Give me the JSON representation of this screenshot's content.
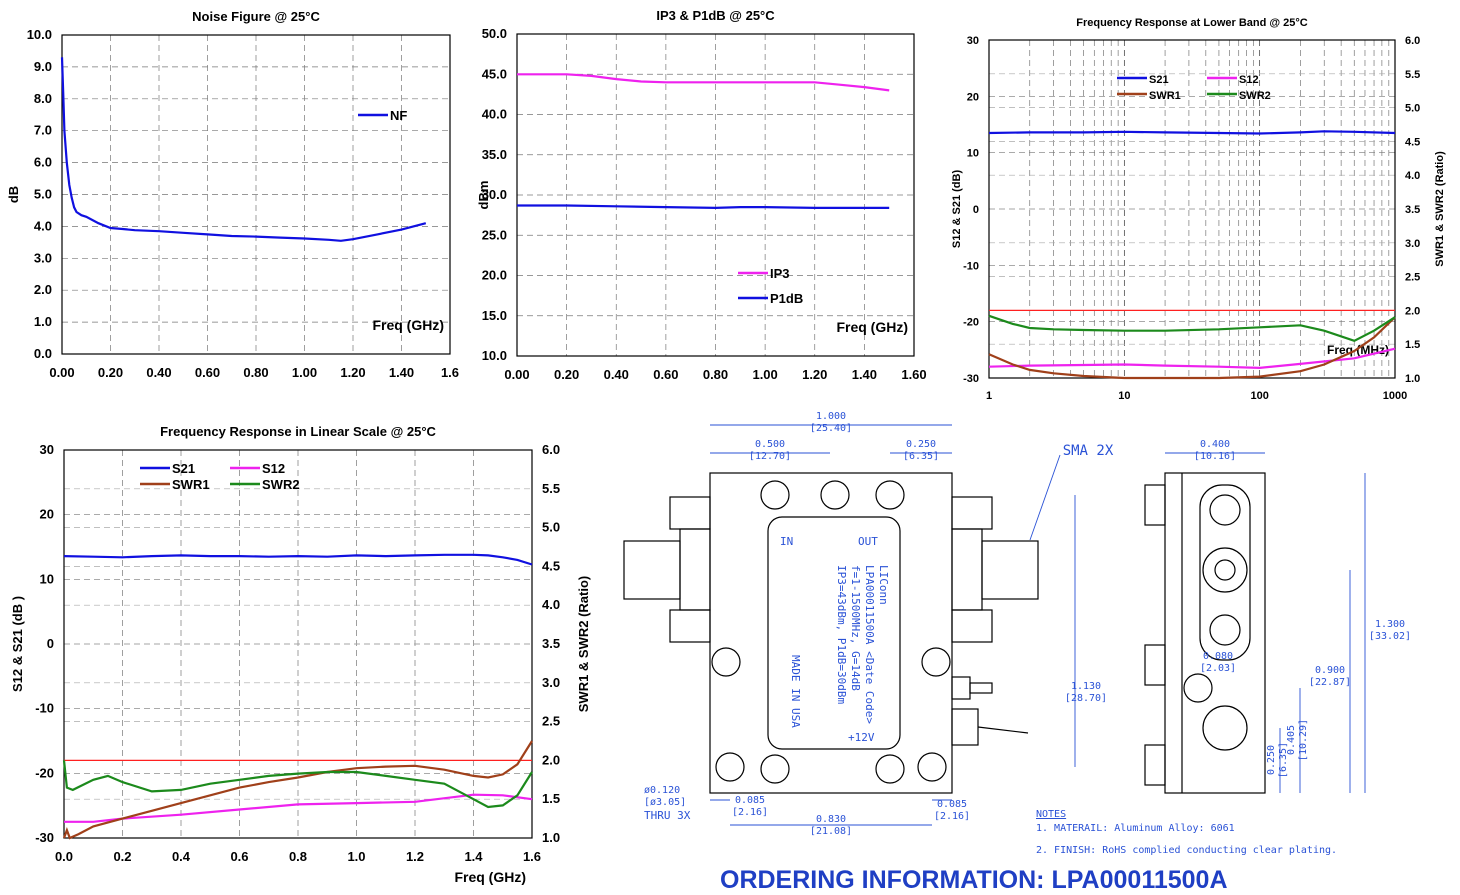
{
  "chart_data": [
    {
      "type": "line",
      "title": "Noise Figure @ 25°C",
      "xlabel": "Freq (GHz)",
      "ylabel": "dB",
      "xlim": [
        0,
        1.6
      ],
      "ylim": [
        0,
        10
      ],
      "x_ticks": [
        "0.00",
        "0.20",
        "0.40",
        "0.60",
        "0.80",
        "1.00",
        "1.20",
        "1.40",
        "1.6"
      ],
      "y_ticks": [
        "0.0",
        "1.0",
        "2.0",
        "3.0",
        "4.0",
        "5.0",
        "6.0",
        "7.0",
        "8.0",
        "9.0",
        "10.0"
      ],
      "grid": true,
      "legend": "upper-right",
      "series": [
        {
          "name": "NF",
          "color": "#1010e0",
          "x": [
            0.0,
            0.005,
            0.01,
            0.02,
            0.03,
            0.04,
            0.05,
            0.06,
            0.08,
            0.1,
            0.15,
            0.2,
            0.25,
            0.3,
            0.4,
            0.5,
            0.6,
            0.7,
            0.8,
            0.9,
            1.0,
            1.1,
            1.15,
            1.2,
            1.3,
            1.4,
            1.5
          ],
          "y": [
            9.3,
            8.2,
            7.0,
            6.0,
            5.3,
            4.9,
            4.6,
            4.45,
            4.35,
            4.3,
            4.1,
            3.95,
            3.92,
            3.88,
            3.85,
            3.8,
            3.75,
            3.7,
            3.68,
            3.65,
            3.62,
            3.58,
            3.55,
            3.6,
            3.75,
            3.9,
            4.1
          ]
        }
      ]
    },
    {
      "type": "line",
      "title": "IP3 & P1dB @ 25°C",
      "xlabel": "Freq (GHz)",
      "ylabel": "dBm",
      "xlim": [
        0,
        1.6
      ],
      "ylim": [
        10,
        50
      ],
      "x_ticks": [
        "0.00",
        "0.20",
        "0.40",
        "0.60",
        "0.80",
        "1.00",
        "1.20",
        "1.40",
        "1.60"
      ],
      "y_ticks": [
        "10.0",
        "15.0",
        "20.0",
        "25.0",
        "30.0",
        "35.0",
        "40.0",
        "45.0",
        "50.0"
      ],
      "grid": true,
      "legend": "lower-right",
      "series": [
        {
          "name": "IP3",
          "color": "#ee22ee",
          "x": [
            0.0,
            0.2,
            0.3,
            0.4,
            0.5,
            0.6,
            0.8,
            1.0,
            1.2,
            1.3,
            1.4,
            1.5
          ],
          "y": [
            45,
            45,
            44.8,
            44.4,
            44.1,
            44,
            44,
            44,
            44,
            43.7,
            43.4,
            43
          ]
        },
        {
          "name": "P1dB",
          "color": "#1010e0",
          "x": [
            0.0,
            0.2,
            0.4,
            0.6,
            0.8,
            0.9,
            1.0,
            1.2,
            1.4,
            1.5
          ],
          "y": [
            28.7,
            28.7,
            28.6,
            28.5,
            28.4,
            28.5,
            28.5,
            28.4,
            28.4,
            28.4
          ]
        }
      ]
    },
    {
      "type": "line",
      "title": "Frequency Response at Lower Band @ 25°C",
      "xlabel": "Freq (MHz)",
      "ylabel": "S12 & S21 (dB)",
      "y2label": "SWR1 & SWR2 (Ratio)",
      "xscale": "log",
      "xlim": [
        1,
        1000
      ],
      "ylim": [
        -30,
        30
      ],
      "y2lim": [
        1.0,
        6.0
      ],
      "x_ticks": [
        "1",
        "10",
        "100",
        "1000"
      ],
      "y_ticks": [
        "-30",
        "-20",
        "-10",
        "0",
        "10",
        "20",
        "30"
      ],
      "y2_ticks": [
        "1.0",
        "1.5",
        "2.0",
        "2.5",
        "3.0",
        "3.5",
        "4.0",
        "4.5",
        "5.0",
        "5.5",
        "6.0"
      ],
      "grid": true,
      "legend": "top",
      "reference_line": {
        "axis": "y2",
        "value": 2.0,
        "color": "#ff2020"
      },
      "series": [
        {
          "name": "S21",
          "axis": "y",
          "color": "#1010e0",
          "x": [
            1,
            2,
            5,
            10,
            20,
            50,
            100,
            200,
            300,
            500,
            1000
          ],
          "y": [
            13.5,
            13.6,
            13.6,
            13.7,
            13.6,
            13.5,
            13.4,
            13.6,
            13.8,
            13.7,
            13.5
          ]
        },
        {
          "name": "S12",
          "axis": "y",
          "color": "#ee22ee",
          "x": [
            1,
            2,
            5,
            10,
            20,
            50,
            100,
            200,
            500,
            1000
          ],
          "y": [
            -28,
            -27.8,
            -27.7,
            -27.6,
            -27.8,
            -28,
            -28.2,
            -27.5,
            -26.5,
            -24.8
          ]
        },
        {
          "name": "SWR1",
          "axis": "y2",
          "color": "#a0401a",
          "x": [
            1,
            1.5,
            2,
            3,
            5,
            10,
            20,
            50,
            100,
            200,
            300,
            500,
            700,
            1000
          ],
          "y": [
            1.35,
            1.2,
            1.12,
            1.07,
            1.03,
            1.0,
            1.0,
            1.0,
            1.02,
            1.1,
            1.2,
            1.4,
            1.6,
            1.9
          ]
        },
        {
          "name": "SWR2",
          "axis": "y2",
          "color": "#1c8a1c",
          "x": [
            1,
            1.5,
            2,
            3,
            5,
            10,
            20,
            50,
            100,
            200,
            300,
            500,
            700,
            1000
          ],
          "y": [
            1.92,
            1.8,
            1.74,
            1.72,
            1.71,
            1.7,
            1.7,
            1.72,
            1.75,
            1.78,
            1.7,
            1.55,
            1.7,
            1.9
          ]
        }
      ]
    },
    {
      "type": "line",
      "title": "Frequency Response in Linear Scale @ 25°C",
      "xlabel": "Freq (GHz)",
      "ylabel": "S12 & S21 (dB )",
      "y2label": "SWR1 & SWR2 (Ratio)",
      "xlim": [
        0,
        1.6
      ],
      "ylim": [
        -30,
        30
      ],
      "y2lim": [
        1.0,
        6.0
      ],
      "x_ticks": [
        "0.0",
        "0.2",
        "0.4",
        "0.6",
        "0.8",
        "1.0",
        "1.2",
        "1.4",
        "1.6"
      ],
      "y_ticks": [
        "-30",
        "-20",
        "-10",
        "0",
        "10",
        "20",
        "30"
      ],
      "y2_ticks": [
        "1.0",
        "1.5",
        "2.0",
        "2.5",
        "3.0",
        "3.5",
        "4.0",
        "4.5",
        "5.0",
        "5.5",
        "6.0"
      ],
      "grid": true,
      "legend": "top",
      "reference_line": {
        "axis": "y2",
        "value": 2.0,
        "color": "#ff2020"
      },
      "series": [
        {
          "name": "S21",
          "axis": "y",
          "color": "#1010e0",
          "x": [
            0.0,
            0.1,
            0.2,
            0.3,
            0.4,
            0.5,
            0.6,
            0.7,
            0.8,
            0.9,
            1.0,
            1.1,
            1.2,
            1.3,
            1.4,
            1.45,
            1.5,
            1.55,
            1.6
          ],
          "y": [
            13.6,
            13.5,
            13.4,
            13.6,
            13.7,
            13.6,
            13.6,
            13.5,
            13.6,
            13.5,
            13.7,
            13.6,
            13.7,
            13.8,
            13.8,
            13.7,
            13.4,
            13.0,
            12.3
          ]
        },
        {
          "name": "S12",
          "axis": "y",
          "color": "#ee22ee",
          "x": [
            0.0,
            0.1,
            0.2,
            0.4,
            0.6,
            0.8,
            1.0,
            1.2,
            1.4,
            1.5,
            1.6
          ],
          "y": [
            -27.5,
            -27.5,
            -27,
            -26.4,
            -25.6,
            -24.8,
            -24.6,
            -24.4,
            -23.3,
            -23.4,
            -24
          ]
        },
        {
          "name": "SWR1",
          "axis": "y2",
          "color": "#a0401a",
          "x": [
            0.0,
            0.01,
            0.02,
            0.05,
            0.1,
            0.2,
            0.3,
            0.4,
            0.5,
            0.6,
            0.7,
            0.8,
            0.9,
            1.0,
            1.1,
            1.2,
            1.3,
            1.4,
            1.45,
            1.5,
            1.55,
            1.6
          ],
          "y": [
            1.0,
            1.1,
            1.0,
            1.05,
            1.15,
            1.25,
            1.35,
            1.45,
            1.55,
            1.65,
            1.72,
            1.78,
            1.85,
            1.9,
            1.92,
            1.93,
            1.88,
            1.8,
            1.78,
            1.82,
            1.95,
            2.25
          ]
        },
        {
          "name": "SWR2",
          "axis": "y2",
          "color": "#1c8a1c",
          "x": [
            0.0,
            0.01,
            0.03,
            0.1,
            0.15,
            0.2,
            0.3,
            0.4,
            0.5,
            0.6,
            0.7,
            0.8,
            0.9,
            1.0,
            1.1,
            1.2,
            1.3,
            1.4,
            1.45,
            1.5,
            1.55,
            1.6
          ],
          "y": [
            2.0,
            1.65,
            1.62,
            1.75,
            1.8,
            1.72,
            1.6,
            1.62,
            1.7,
            1.75,
            1.8,
            1.83,
            1.85,
            1.85,
            1.8,
            1.75,
            1.7,
            1.5,
            1.4,
            1.42,
            1.55,
            1.85
          ]
        }
      ]
    }
  ],
  "drawing": {
    "top_view": {
      "dim_width": "1.000",
      "dim_width_mm": "[25.40]",
      "dim_half": "0.500",
      "dim_half_mm": "[12.70]",
      "dim_quarter": "0.250",
      "dim_quarter_mm": "[6.35]",
      "dim_height": "1.130",
      "dim_height_mm": "[28.70]",
      "dim_hole_pitch": "0.830",
      "dim_hole_pitch_mm": "[21.08]",
      "dim_edge_left": "0.085",
      "dim_edge_left_mm": "[2.16]",
      "dim_edge_right": "0.085",
      "dim_edge_right_mm": "[2.16]",
      "hole_dia": "ø0.120",
      "hole_dia_mm": "[ø3.05]",
      "hole_thru": "THRU 3X",
      "connector_label": "SMA 2X",
      "port_in": "IN",
      "port_out": "OUT",
      "supply": "+12V",
      "label_lines": [
        "LIConn",
        "LPA00011500A <Date Code>",
        "f=1-1500MHz, G=14dB",
        "IP3=43dBm, P1dB=30dBm",
        "MADE IN USA"
      ]
    },
    "side_view": {
      "dim_depth": "0.400",
      "dim_depth_mm": "[10.16]",
      "dim_total": "1.300",
      "dim_total_mm": "[33.02]",
      "dim_mid": "0.900",
      "dim_mid_mm": "[22.87]",
      "dim_small": "0.080",
      "dim_small_mm": "[2.03]",
      "dim_a": "0.250",
      "dim_a_mm": "[6.35]",
      "dim_b": "0.405",
      "dim_b_mm": "[10.29]"
    },
    "notes_title": "NOTES",
    "note1": "1. MATERAIL: Aluminum Alloy: 6061",
    "note2": "2. FINISH:  RoHS complied conducting clear plating."
  },
  "ordering_title": "ORDERING INFORMATION: LPA00011500A"
}
